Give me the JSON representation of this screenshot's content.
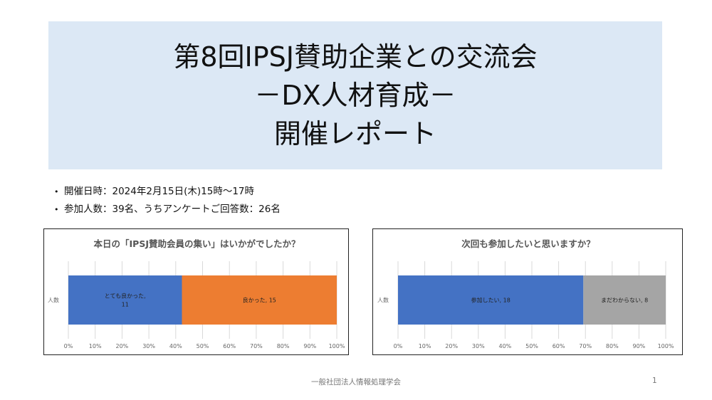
{
  "title": {
    "line1": "第8回IPSJ賛助企業との交流会",
    "line2": "－DX人材育成－",
    "line3": "開催レポート"
  },
  "bullets": [
    {
      "marker": "•",
      "text": "開催日時：2024年2月15日(木)15時～17時"
    },
    {
      "marker": "•",
      "text": "参加人数：39名、うちアンケートご回答数：26名"
    }
  ],
  "footer": {
    "org": "一般社団法人情報処理学会",
    "page": "1"
  },
  "colors": {
    "blue": "#4472c4",
    "orange": "#ed7d31",
    "gray": "#a5a5a5",
    "title_bg": "#dce8f5"
  },
  "chart_data": [
    {
      "type": "bar",
      "orientation": "horizontal",
      "stacked": "100%",
      "title": "本日の「IPSJ賛助会員の集い」はいかがでしたか？",
      "categories": [
        "人数"
      ],
      "series": [
        {
          "name": "とても良かった",
          "values": [
            11
          ],
          "color": "#4472c4",
          "label_lines": [
            "とても良かった,",
            "11"
          ]
        },
        {
          "name": "良かった",
          "values": [
            15
          ],
          "color": "#ed7d31",
          "label_lines": [
            "良かった, 15"
          ]
        }
      ],
      "xlim": [
        0,
        100
      ],
      "xticks": [
        "0%",
        "10%",
        "20%",
        "30%",
        "40%",
        "50%",
        "60%",
        "70%",
        "80%",
        "90%",
        "100%"
      ],
      "grid": true
    },
    {
      "type": "bar",
      "orientation": "horizontal",
      "stacked": "100%",
      "title": "次回も参加したいと思いますか？",
      "categories": [
        "人数"
      ],
      "series": [
        {
          "name": "参加したい",
          "values": [
            18
          ],
          "color": "#4472c4",
          "label_lines": [
            "参加したい, 18"
          ]
        },
        {
          "name": "まだわからない",
          "values": [
            8
          ],
          "color": "#a5a5a5",
          "label_lines": [
            "まだわからない, 8"
          ]
        }
      ],
      "xlim": [
        0,
        100
      ],
      "xticks": [
        "0%",
        "10%",
        "20%",
        "30%",
        "40%",
        "50%",
        "60%",
        "70%",
        "80%",
        "90%",
        "100%"
      ],
      "grid": true
    }
  ]
}
